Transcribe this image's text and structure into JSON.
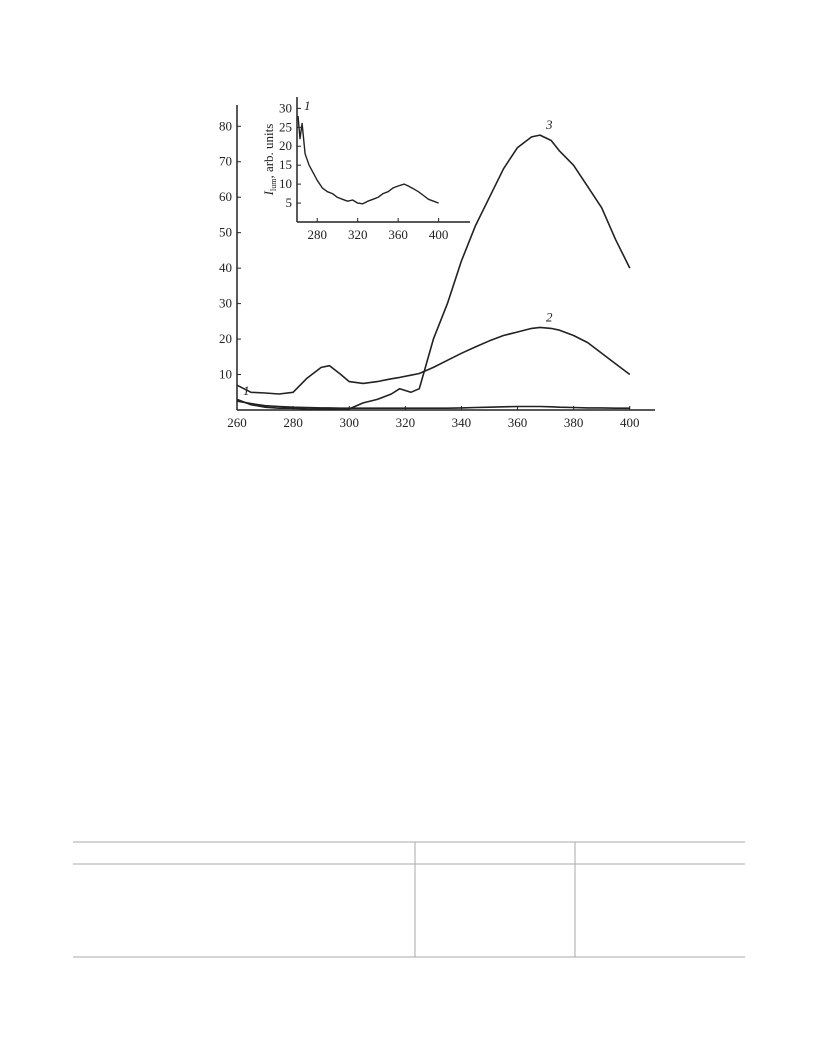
{
  "chart_data": [
    {
      "type": "line",
      "x": [
        260,
        265,
        270,
        275,
        280,
        285,
        290,
        293,
        297,
        300,
        305,
        310,
        315,
        318,
        322,
        325,
        330,
        335,
        340,
        345,
        350,
        355,
        360,
        365,
        368,
        372,
        375,
        380,
        385,
        390,
        395,
        400
      ],
      "series": [
        {
          "name": "1",
          "color": "#222222",
          "values": [
            2.5,
            1.8,
            1.2,
            1,
            0.8,
            0.7,
            0.6,
            0.6,
            0.5,
            0.5,
            0.5,
            0.5,
            0.5,
            0.5,
            0.5,
            0.5,
            0.5,
            0.5,
            0.6,
            0.7,
            0.8,
            0.9,
            1,
            1,
            1,
            0.9,
            0.8,
            0.7,
            0.6,
            0.6,
            0.5,
            0.5
          ]
        },
        {
          "name": "2",
          "color": "#222222",
          "values": [
            7,
            5,
            4.8,
            4.5,
            5,
            9,
            12,
            12.5,
            10,
            8,
            7.5,
            8,
            8.8,
            9.2,
            9.8,
            10.3,
            12,
            14,
            16,
            17.8,
            19.5,
            21,
            22,
            23,
            23.3,
            23,
            22.5,
            21,
            19,
            16,
            13,
            10
          ]
        },
        {
          "name": "3",
          "color": "#222222",
          "values": [
            3,
            1.5,
            0.8,
            0.5,
            0.5,
            0.3,
            0.2,
            0.2,
            0.2,
            0.3,
            2,
            3,
            4.5,
            6,
            5,
            6,
            20,
            30,
            42,
            52,
            60,
            68,
            74,
            77,
            77.5,
            76,
            73,
            69,
            63,
            57,
            48,
            40
          ]
        }
      ],
      "xlim": [
        260,
        409
      ],
      "ylim": [
        0,
        86
      ],
      "xticks": [
        260,
        280,
        300,
        320,
        340,
        360,
        380,
        400
      ],
      "yticks": [
        10,
        20,
        30,
        40,
        50,
        60,
        70,
        80
      ]
    },
    {
      "type": "line",
      "ylabel": "I",
      "ylabel_sub": "lum",
      "ylabel_rest": ", arb. units",
      "x": [
        261,
        263,
        265,
        268,
        272,
        276,
        280,
        285,
        290,
        295,
        300,
        305,
        310,
        315,
        320,
        325,
        330,
        335,
        340,
        345,
        350,
        355,
        360,
        366,
        370,
        375,
        380,
        385,
        390,
        395,
        400
      ],
      "series": [
        {
          "name": "1",
          "color": "#222222",
          "values": [
            28,
            22,
            26,
            18,
            15,
            13,
            11,
            9,
            8,
            7.5,
            6.5,
            6,
            5.5,
            5.8,
            5,
            4.8,
            5.5,
            6,
            6.5,
            7.5,
            8,
            9,
            9.5,
            10,
            9.5,
            8.8,
            8,
            7,
            6,
            5.5,
            5
          ]
        }
      ],
      "xlim": [
        260,
        431
      ],
      "ylim": [
        0,
        33
      ],
      "xticks": [
        280,
        320,
        360,
        400
      ],
      "yticks": [
        5,
        10,
        15,
        20,
        25,
        30
      ]
    }
  ]
}
